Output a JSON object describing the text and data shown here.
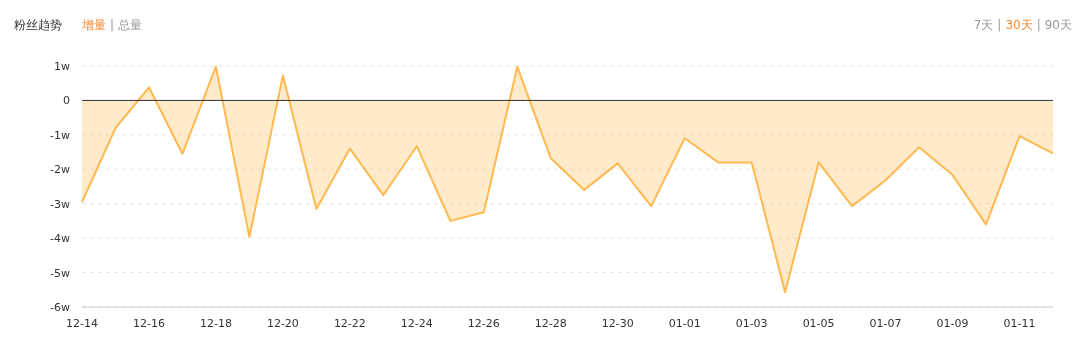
{
  "chart_data": {
    "type": "area",
    "title": "粉丝趋势",
    "annotations": [
      "增量",
      "|",
      "总量",
      "7天",
      "|",
      "30天",
      "|",
      "90天"
    ],
    "categories": [
      "12-14",
      null,
      "12-16",
      null,
      "12-18",
      null,
      "12-20",
      null,
      "12-22",
      null,
      "12-24",
      null,
      "12-26",
      null,
      "12-28",
      null,
      "12-30",
      null,
      "01-01",
      null,
      "01-03",
      null,
      "01-05",
      null,
      "01-07",
      null,
      "01-09",
      null,
      "01-11",
      null
    ],
    "series": [
      {
        "color": "#ffb950",
        "values": [
          -2.95,
          -0.8,
          0.38,
          -1.55,
          0.98,
          -3.97,
          0.72,
          -3.15,
          -1.4,
          -2.75,
          -1.33,
          -3.5,
          -3.25,
          0.98,
          -1.68,
          -2.6,
          -1.83,
          -3.07,
          -1.1,
          -1.8,
          -1.8,
          -5.57,
          -1.8,
          -3.07,
          -2.32,
          -1.36,
          -2.17,
          -3.6,
          -1.04,
          -1.54
        ]
      }
    ],
    "ylim": [
      -6,
      1
    ],
    "yticks": [
      {
        "value": 1,
        "label": "1w"
      },
      0,
      {
        "value": -1,
        "label": "-1w"
      },
      {
        "value": -2,
        "label": "-2w"
      },
      {
        "value": -3,
        "label": "-3w"
      },
      {
        "value": -4,
        "label": "-4w"
      },
      {
        "value": -5,
        "label": "-5w"
      },
      {
        "value": -6,
        "label": "-6w"
      }
    ],
    "grid": "y",
    "marker": "none",
    "line_style": "solid",
    "ref_lines": [
      {
        "axis": "y",
        "value": 0,
        "color": "#333333"
      }
    ]
  }
}
